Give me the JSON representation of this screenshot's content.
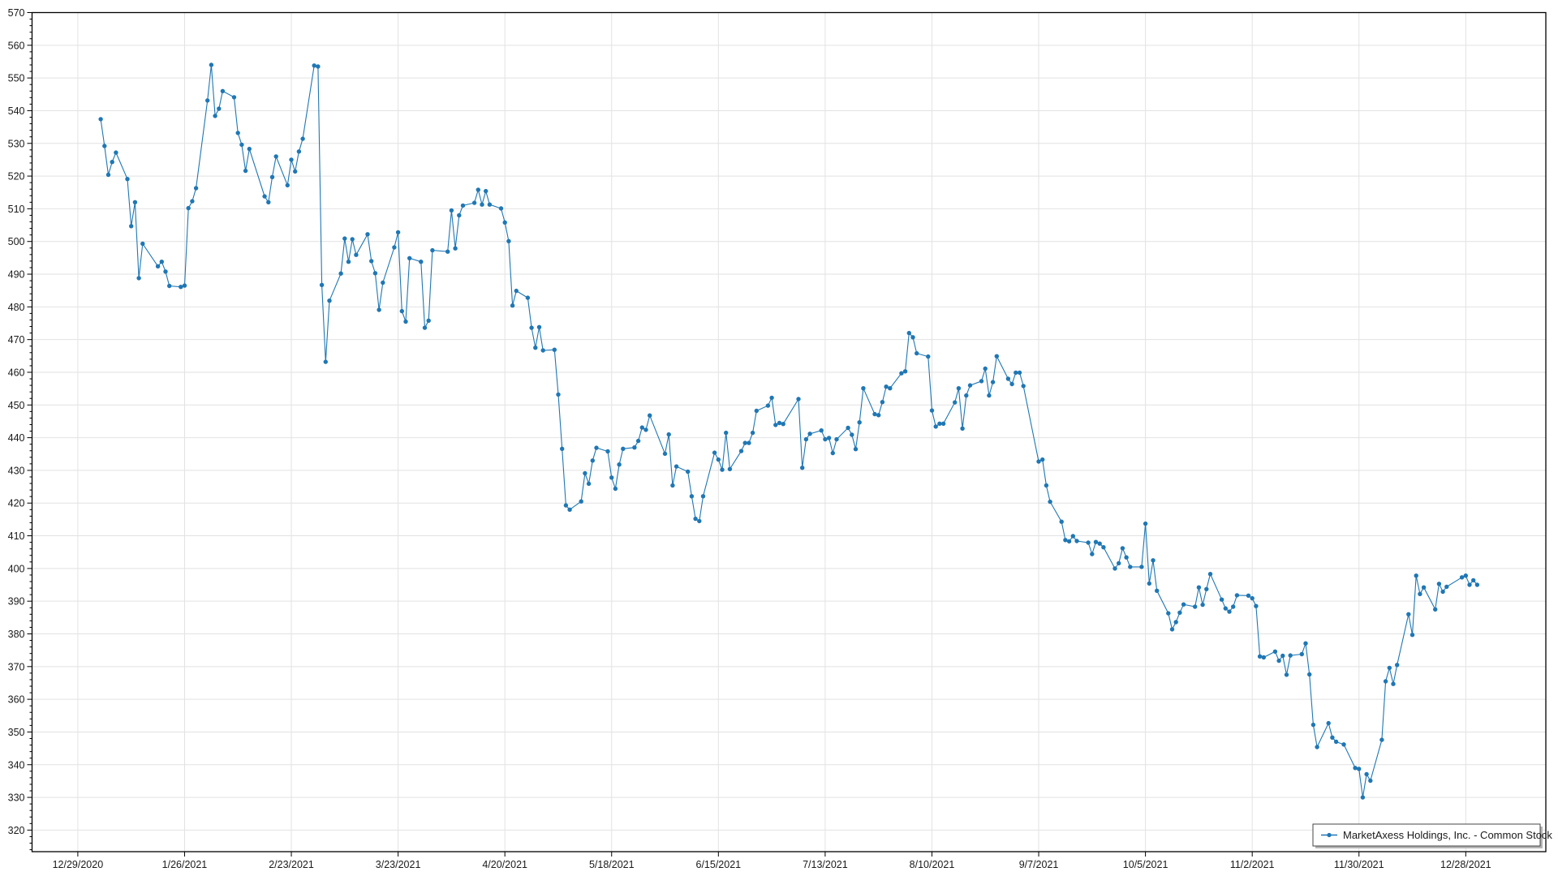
{
  "chart_data": {
    "type": "line",
    "title": "",
    "xlabel": "",
    "ylabel": "",
    "markers": true,
    "grid": true,
    "legend_position": "bottom-right",
    "xlim": [
      "2020-12-17",
      "2022-01-18"
    ],
    "ylim": [
      313.4,
      570
    ],
    "y_ticks": [
      320,
      330,
      340,
      350,
      360,
      370,
      380,
      390,
      400,
      410,
      420,
      430,
      440,
      450,
      460,
      470,
      480,
      490,
      500,
      510,
      520,
      530,
      540,
      550,
      560,
      570
    ],
    "y_tick_labels": [
      "320",
      "330",
      "340",
      "350",
      "360",
      "370",
      "380",
      "390",
      "400",
      "410",
      "420",
      "430",
      "440",
      "450",
      "460",
      "470",
      "480",
      "490",
      "500",
      "510",
      "520",
      "530",
      "540",
      "550",
      "560",
      "570"
    ],
    "x_ticks": [
      "2020-12-29",
      "2021-01-26",
      "2021-02-23",
      "2021-03-23",
      "2021-04-20",
      "2021-05-18",
      "2021-06-15",
      "2021-07-13",
      "2021-08-10",
      "2021-09-07",
      "2021-10-05",
      "2021-11-02",
      "2021-11-30",
      "2021-12-28"
    ],
    "x_tick_labels": [
      "12/29/2020",
      "1/26/2021",
      "2/23/2021",
      "3/23/2021",
      "4/20/2021",
      "5/18/2021",
      "6/15/2021",
      "7/13/2021",
      "8/10/2021",
      "9/7/2021",
      "10/5/2021",
      "11/2/2021",
      "11/30/2021",
      "12/28/2021"
    ],
    "series": [
      {
        "name": "MarketAxess Holdings, Inc. - Common Stock",
        "color": "#1f77b4",
        "points": [
          [
            "2021-01-04",
            537.4
          ],
          [
            "2021-01-05",
            529.2
          ],
          [
            "2021-01-06",
            520.4
          ],
          [
            "2021-01-07",
            524.3
          ],
          [
            "2021-01-08",
            527.2
          ],
          [
            "2021-01-11",
            519.1
          ],
          [
            "2021-01-12",
            504.7
          ],
          [
            "2021-01-13",
            512.0
          ],
          [
            "2021-01-14",
            488.8
          ],
          [
            "2021-01-15",
            499.3
          ],
          [
            "2021-01-19",
            492.4
          ],
          [
            "2021-01-20",
            493.8
          ],
          [
            "2021-01-21",
            490.8
          ],
          [
            "2021-01-22",
            486.4
          ],
          [
            "2021-01-25",
            486.1
          ],
          [
            "2021-01-26",
            486.5
          ],
          [
            "2021-01-27",
            510.2
          ],
          [
            "2021-01-28",
            512.3
          ],
          [
            "2021-01-29",
            516.3
          ],
          [
            "2021-02-01",
            543.1
          ],
          [
            "2021-02-02",
            554.0
          ],
          [
            "2021-02-03",
            538.4
          ],
          [
            "2021-02-04",
            540.6
          ],
          [
            "2021-02-05",
            546.0
          ],
          [
            "2021-02-08",
            544.1
          ],
          [
            "2021-02-09",
            533.2
          ],
          [
            "2021-02-10",
            529.6
          ],
          [
            "2021-02-11",
            521.6
          ],
          [
            "2021-02-12",
            528.3
          ],
          [
            "2021-02-16",
            513.8
          ],
          [
            "2021-02-17",
            512.0
          ],
          [
            "2021-02-18",
            519.7
          ],
          [
            "2021-02-19",
            526.0
          ],
          [
            "2021-02-22",
            517.2
          ],
          [
            "2021-02-23",
            525.0
          ],
          [
            "2021-02-24",
            521.4
          ],
          [
            "2021-02-25",
            527.5
          ],
          [
            "2021-02-26",
            531.4
          ],
          [
            "2021-03-01",
            553.8
          ],
          [
            "2021-03-02",
            553.5
          ],
          [
            "2021-03-03",
            486.7
          ],
          [
            "2021-03-04",
            463.2
          ],
          [
            "2021-03-05",
            481.9
          ],
          [
            "2021-03-08",
            490.2
          ],
          [
            "2021-03-09",
            500.9
          ],
          [
            "2021-03-10",
            493.8
          ],
          [
            "2021-03-11",
            500.7
          ],
          [
            "2021-03-12",
            495.9
          ],
          [
            "2021-03-15",
            502.2
          ],
          [
            "2021-03-16",
            494.0
          ],
          [
            "2021-03-17",
            490.3
          ],
          [
            "2021-03-18",
            479.1
          ],
          [
            "2021-03-19",
            487.4
          ],
          [
            "2021-03-22",
            498.2
          ],
          [
            "2021-03-23",
            502.8
          ],
          [
            "2021-03-24",
            478.7
          ],
          [
            "2021-03-25",
            475.5
          ],
          [
            "2021-03-26",
            494.9
          ],
          [
            "2021-03-29",
            493.8
          ],
          [
            "2021-03-30",
            473.6
          ],
          [
            "2021-03-31",
            475.8
          ],
          [
            "2021-04-01",
            497.3
          ],
          [
            "2021-04-05",
            496.9
          ],
          [
            "2021-04-06",
            509.5
          ],
          [
            "2021-04-07",
            497.9
          ],
          [
            "2021-04-08",
            508.0
          ],
          [
            "2021-04-09",
            511.0
          ],
          [
            "2021-04-12",
            511.8
          ],
          [
            "2021-04-13",
            515.8
          ],
          [
            "2021-04-14",
            511.3
          ],
          [
            "2021-04-15",
            515.4
          ],
          [
            "2021-04-16",
            511.3
          ],
          [
            "2021-04-19",
            510.1
          ],
          [
            "2021-04-20",
            505.8
          ],
          [
            "2021-04-21",
            500.1
          ],
          [
            "2021-04-22",
            480.4
          ],
          [
            "2021-04-23",
            484.9
          ],
          [
            "2021-04-26",
            482.8
          ],
          [
            "2021-04-27",
            473.6
          ],
          [
            "2021-04-28",
            467.5
          ],
          [
            "2021-04-29",
            473.8
          ],
          [
            "2021-04-30",
            466.7
          ],
          [
            "2021-05-03",
            466.9
          ],
          [
            "2021-05-04",
            453.2
          ],
          [
            "2021-05-05",
            436.6
          ],
          [
            "2021-05-06",
            419.3
          ],
          [
            "2021-05-07",
            418.0
          ],
          [
            "2021-05-10",
            420.5
          ],
          [
            "2021-05-11",
            429.1
          ],
          [
            "2021-05-12",
            425.9
          ],
          [
            "2021-05-13",
            433.0
          ],
          [
            "2021-05-14",
            436.9
          ],
          [
            "2021-05-17",
            435.8
          ],
          [
            "2021-05-18",
            427.8
          ],
          [
            "2021-05-19",
            424.4
          ],
          [
            "2021-05-20",
            431.8
          ],
          [
            "2021-05-21",
            436.6
          ],
          [
            "2021-05-24",
            437.0
          ],
          [
            "2021-05-25",
            439.0
          ],
          [
            "2021-05-26",
            443.1
          ],
          [
            "2021-05-27",
            442.4
          ],
          [
            "2021-05-28",
            446.8
          ],
          [
            "2021-06-01",
            435.1
          ],
          [
            "2021-06-02",
            441.0
          ],
          [
            "2021-06-03",
            425.4
          ],
          [
            "2021-06-04",
            431.2
          ],
          [
            "2021-06-07",
            429.6
          ],
          [
            "2021-06-08",
            422.1
          ],
          [
            "2021-06-09",
            415.2
          ],
          [
            "2021-06-10",
            414.5
          ],
          [
            "2021-06-11",
            422.1
          ],
          [
            "2021-06-14",
            435.4
          ],
          [
            "2021-06-15",
            433.3
          ],
          [
            "2021-06-16",
            430.2
          ],
          [
            "2021-06-17",
            441.5
          ],
          [
            "2021-06-18",
            430.4
          ],
          [
            "2021-06-21",
            435.9
          ],
          [
            "2021-06-22",
            438.4
          ],
          [
            "2021-06-23",
            438.4
          ],
          [
            "2021-06-24",
            441.5
          ],
          [
            "2021-06-25",
            448.2
          ],
          [
            "2021-06-28",
            449.8
          ],
          [
            "2021-06-29",
            452.2
          ],
          [
            "2021-06-30",
            443.9
          ],
          [
            "2021-07-01",
            444.5
          ],
          [
            "2021-07-02",
            444.2
          ],
          [
            "2021-07-06",
            451.8
          ],
          [
            "2021-07-07",
            430.8
          ],
          [
            "2021-07-08",
            439.5
          ],
          [
            "2021-07-09",
            441.2
          ],
          [
            "2021-07-12",
            442.2
          ],
          [
            "2021-07-13",
            439.5
          ],
          [
            "2021-07-14",
            439.9
          ],
          [
            "2021-07-15",
            435.3
          ],
          [
            "2021-07-16",
            439.5
          ],
          [
            "2021-07-19",
            443.0
          ],
          [
            "2021-07-20",
            440.9
          ],
          [
            "2021-07-21",
            436.5
          ],
          [
            "2021-07-22",
            444.7
          ],
          [
            "2021-07-23",
            455.1
          ],
          [
            "2021-07-26",
            447.2
          ],
          [
            "2021-07-27",
            446.9
          ],
          [
            "2021-07-28",
            450.9
          ],
          [
            "2021-07-29",
            455.6
          ],
          [
            "2021-07-30",
            455.1
          ],
          [
            "2021-08-02",
            459.7
          ],
          [
            "2021-08-03",
            460.3
          ],
          [
            "2021-08-04",
            472.0
          ],
          [
            "2021-08-05",
            470.7
          ],
          [
            "2021-08-06",
            465.8
          ],
          [
            "2021-08-09",
            464.8
          ],
          [
            "2021-08-10",
            448.3
          ],
          [
            "2021-08-11",
            443.4
          ],
          [
            "2021-08-12",
            444.3
          ],
          [
            "2021-08-13",
            444.3
          ],
          [
            "2021-08-16",
            450.8
          ],
          [
            "2021-08-17",
            455.1
          ],
          [
            "2021-08-18",
            442.8
          ],
          [
            "2021-08-19",
            452.9
          ],
          [
            "2021-08-20",
            456.0
          ],
          [
            "2021-08-23",
            457.3
          ],
          [
            "2021-08-24",
            461.1
          ],
          [
            "2021-08-25",
            452.9
          ],
          [
            "2021-08-26",
            457.0
          ],
          [
            "2021-08-27",
            464.9
          ],
          [
            "2021-08-30",
            458.0
          ],
          [
            "2021-08-31",
            456.4
          ],
          [
            "2021-09-01",
            459.9
          ],
          [
            "2021-09-02",
            459.9
          ],
          [
            "2021-09-03",
            455.8
          ],
          [
            "2021-09-07",
            432.7
          ],
          [
            "2021-09-08",
            433.3
          ],
          [
            "2021-09-09",
            425.4
          ],
          [
            "2021-09-10",
            420.4
          ],
          [
            "2021-09-13",
            414.3
          ],
          [
            "2021-09-14",
            408.7
          ],
          [
            "2021-09-15",
            408.3
          ],
          [
            "2021-09-16",
            409.9
          ],
          [
            "2021-09-17",
            408.4
          ],
          [
            "2021-09-20",
            407.9
          ],
          [
            "2021-09-21",
            404.4
          ],
          [
            "2021-09-22",
            408.1
          ],
          [
            "2021-09-23",
            407.6
          ],
          [
            "2021-09-24",
            406.5
          ],
          [
            "2021-09-27",
            400.0
          ],
          [
            "2021-09-28",
            401.6
          ],
          [
            "2021-09-29",
            406.2
          ],
          [
            "2021-09-30",
            403.4
          ],
          [
            "2021-10-01",
            400.5
          ],
          [
            "2021-10-04",
            400.5
          ],
          [
            "2021-10-05",
            413.7
          ],
          [
            "2021-10-06",
            395.4
          ],
          [
            "2021-10-07",
            402.5
          ],
          [
            "2021-10-08",
            393.2
          ],
          [
            "2021-10-11",
            386.3
          ],
          [
            "2021-10-12",
            381.4
          ],
          [
            "2021-10-13",
            383.6
          ],
          [
            "2021-10-14",
            386.5
          ],
          [
            "2021-10-15",
            389.0
          ],
          [
            "2021-10-18",
            388.3
          ],
          [
            "2021-10-19",
            394.2
          ],
          [
            "2021-10-20",
            388.9
          ],
          [
            "2021-10-21",
            393.7
          ],
          [
            "2021-10-22",
            398.3
          ],
          [
            "2021-10-25",
            390.5
          ],
          [
            "2021-10-26",
            387.8
          ],
          [
            "2021-10-27",
            386.8
          ],
          [
            "2021-10-28",
            388.3
          ],
          [
            "2021-10-29",
            391.8
          ],
          [
            "2021-11-01",
            391.7
          ],
          [
            "2021-11-02",
            390.9
          ],
          [
            "2021-11-03",
            388.5
          ],
          [
            "2021-11-04",
            373.1
          ],
          [
            "2021-11-05",
            372.8
          ],
          [
            "2021-11-08",
            374.6
          ],
          [
            "2021-11-09",
            371.8
          ],
          [
            "2021-11-10",
            373.3
          ],
          [
            "2021-11-11",
            367.5
          ],
          [
            "2021-11-12",
            373.4
          ],
          [
            "2021-11-15",
            373.8
          ],
          [
            "2021-11-16",
            377.1
          ],
          [
            "2021-11-17",
            367.6
          ],
          [
            "2021-11-18",
            352.2
          ],
          [
            "2021-11-19",
            345.4
          ],
          [
            "2021-11-22",
            352.7
          ],
          [
            "2021-11-23",
            348.3
          ],
          [
            "2021-11-24",
            347.0
          ],
          [
            "2021-11-26",
            346.2
          ],
          [
            "2021-11-29",
            339.0
          ],
          [
            "2021-11-30",
            338.7
          ],
          [
            "2021-12-01",
            330.0
          ],
          [
            "2021-12-02",
            337.1
          ],
          [
            "2021-12-03",
            335.1
          ],
          [
            "2021-12-06",
            347.6
          ],
          [
            "2021-12-07",
            365.5
          ],
          [
            "2021-12-08",
            369.6
          ],
          [
            "2021-12-09",
            364.7
          ],
          [
            "2021-12-10",
            370.5
          ],
          [
            "2021-12-13",
            386.0
          ],
          [
            "2021-12-14",
            379.7
          ],
          [
            "2021-12-15",
            397.8
          ],
          [
            "2021-12-16",
            392.2
          ],
          [
            "2021-12-17",
            394.2
          ],
          [
            "2021-12-20",
            387.5
          ],
          [
            "2021-12-21",
            395.3
          ],
          [
            "2021-12-22",
            392.9
          ],
          [
            "2021-12-23",
            394.4
          ],
          [
            "2021-12-27",
            397.3
          ],
          [
            "2021-12-28",
            397.8
          ],
          [
            "2021-12-29",
            395.0
          ],
          [
            "2021-12-30",
            396.4
          ],
          [
            "2021-12-31",
            395.0
          ]
        ]
      }
    ]
  }
}
